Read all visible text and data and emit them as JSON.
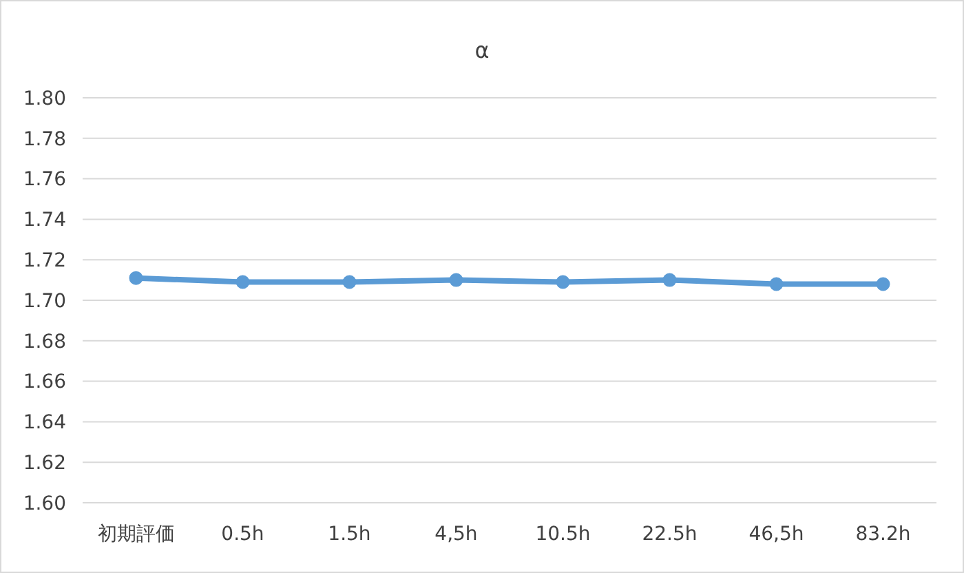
{
  "chart_data": {
    "type": "line",
    "title": "α",
    "categories": [
      "初期評価",
      "0.5h",
      "1.5h",
      "4,5h",
      "10.5h",
      "22.5h",
      "46,5h",
      "83.2h"
    ],
    "series": [
      {
        "color": "#5b9bd5",
        "values": [
          1.711,
          1.709,
          1.709,
          1.71,
          1.709,
          1.71,
          1.708,
          1.708
        ]
      }
    ],
    "ylim": [
      1.6,
      1.8
    ],
    "yticks": [
      {
        "value": 1.6,
        "label": "1.60"
      },
      {
        "value": 1.62,
        "label": "1.62"
      },
      {
        "value": 1.64,
        "label": "1.64"
      },
      {
        "value": 1.66,
        "label": "1.66"
      },
      {
        "value": 1.68,
        "label": "1.68"
      },
      {
        "value": 1.7,
        "label": "1.70"
      },
      {
        "value": 1.72,
        "label": "1.72"
      },
      {
        "value": 1.74,
        "label": "1.74"
      },
      {
        "value": 1.76,
        "label": "1.76"
      },
      {
        "value": 1.78,
        "label": "1.78"
      },
      {
        "value": 1.8,
        "label": "1.80"
      }
    ],
    "grid": "y",
    "marker": "circle"
  }
}
